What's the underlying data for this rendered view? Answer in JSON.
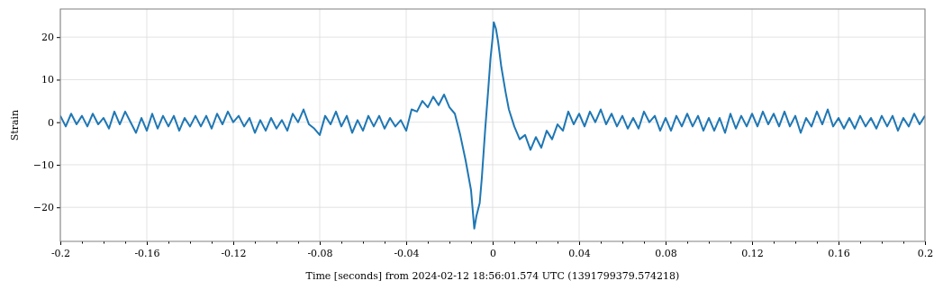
{
  "chart_data": {
    "type": "line",
    "xlabel": "Time [seconds] from 2024-02-12 18:56:01.574 UTC (1391799379.574218)",
    "ylabel": "Strain",
    "xlim": [
      -0.2,
      0.2
    ],
    "ylim": [
      -28,
      26.6
    ],
    "xticks": [
      -0.2,
      {
        "value": -0.19,
        "label": null
      },
      {
        "value": -0.18,
        "label": null
      },
      {
        "value": -0.17,
        "label": null
      },
      -0.16,
      {
        "value": -0.15,
        "label": null
      },
      {
        "value": -0.14,
        "label": null
      },
      {
        "value": -0.13,
        "label": null
      },
      -0.12,
      {
        "value": -0.11,
        "label": null
      },
      {
        "value": -0.1,
        "label": null
      },
      {
        "value": -0.09,
        "label": null
      },
      -0.08,
      {
        "value": -0.07,
        "label": null
      },
      {
        "value": -0.06,
        "label": null
      },
      {
        "value": -0.05,
        "label": null
      },
      -0.04,
      {
        "value": -0.03,
        "label": null
      },
      {
        "value": -0.02,
        "label": null
      },
      {
        "value": -0.01,
        "label": null
      },
      0,
      {
        "value": 0.01,
        "label": null
      },
      {
        "value": 0.02,
        "label": null
      },
      {
        "value": 0.03,
        "label": null
      },
      0.04,
      {
        "value": 0.05,
        "label": null
      },
      {
        "value": 0.06,
        "label": null
      },
      {
        "value": 0.07,
        "label": null
      },
      0.08,
      {
        "value": 0.09,
        "label": null
      },
      {
        "value": 0.1,
        "label": null
      },
      {
        "value": 0.11,
        "label": null
      },
      0.12,
      {
        "value": 0.13,
        "label": null
      },
      {
        "value": 0.14,
        "label": null
      },
      {
        "value": 0.15,
        "label": null
      },
      0.16,
      {
        "value": 0.17,
        "label": null
      },
      {
        "value": 0.18,
        "label": null
      },
      {
        "value": 0.19,
        "label": null
      },
      0.2
    ],
    "yticks": [
      {
        "value": -20,
        "label": "−20"
      },
      {
        "value": -10,
        "label": "−10"
      },
      0,
      10,
      20
    ],
    "grid": true,
    "line_style": "solid",
    "series": [
      {
        "color": "#1f77b4",
        "x": [
          -0.2,
          -0.1975,
          -0.195,
          -0.1925,
          -0.19,
          -0.1875,
          -0.185,
          -0.1825,
          -0.18,
          -0.1775,
          -0.175,
          -0.1725,
          -0.17,
          -0.1675,
          -0.165,
          -0.1625,
          -0.16,
          -0.1575,
          -0.155,
          -0.1525,
          -0.15,
          -0.1475,
          -0.145,
          -0.1425,
          -0.14,
          -0.1375,
          -0.135,
          -0.1325,
          -0.13,
          -0.1275,
          -0.125,
          -0.1225,
          -0.12,
          -0.1175,
          -0.115,
          -0.1125,
          -0.11,
          -0.1075,
          -0.105,
          -0.1025,
          -0.1,
          -0.0975,
          -0.095,
          -0.0925,
          -0.09,
          -0.0875,
          -0.085,
          -0.0825,
          -0.08,
          -0.0775,
          -0.075,
          -0.0725,
          -0.07,
          -0.0675,
          -0.065,
          -0.0625,
          -0.06,
          -0.0575,
          -0.055,
          -0.0525,
          -0.05,
          -0.0475,
          -0.045,
          -0.0425,
          -0.04,
          -0.0375,
          -0.035,
          -0.0325,
          -0.03,
          -0.0275,
          -0.025,
          -0.0225,
          -0.02,
          -0.0175,
          -0.015,
          -0.0125,
          -0.01,
          -0.0085,
          -0.0075,
          -0.006,
          -0.005,
          -0.0035,
          -0.002,
          -0.001,
          0,
          0.0005,
          0.0015,
          0.0025,
          0.004,
          0.006,
          0.0075,
          0.01,
          0.0125,
          0.015,
          0.0175,
          0.02,
          0.0225,
          0.025,
          0.0275,
          0.03,
          0.0325,
          0.035,
          0.0375,
          0.04,
          0.0425,
          0.045,
          0.0475,
          0.05,
          0.0525,
          0.055,
          0.0575,
          0.06,
          0.0625,
          0.065,
          0.0675,
          0.07,
          0.0725,
          0.075,
          0.0775,
          0.08,
          0.0825,
          0.085,
          0.0875,
          0.09,
          0.0925,
          0.095,
          0.0975,
          0.1,
          0.1025,
          0.105,
          0.1075,
          0.11,
          0.1125,
          0.115,
          0.1175,
          0.12,
          0.1225,
          0.125,
          0.1275,
          0.13,
          0.1325,
          0.135,
          0.1375,
          0.14,
          0.1425,
          0.145,
          0.1475,
          0.15,
          0.1525,
          0.155,
          0.1575,
          0.16,
          0.1625,
          0.165,
          0.1675,
          0.17,
          0.1725,
          0.175,
          0.1775,
          0.18,
          0.1825,
          0.185,
          0.1875,
          0.19,
          0.1925,
          0.195,
          0.1975,
          0.2
        ],
        "values": [
          1.5,
          -1,
          2,
          -0.5,
          1.5,
          -1,
          2,
          -0.5,
          1,
          -1.5,
          2.5,
          -0.5,
          2.5,
          0,
          -2.5,
          1,
          -2,
          2,
          -1.5,
          1.5,
          -1,
          1.5,
          -2,
          1,
          -1,
          1.5,
          -1,
          1.5,
          -1.5,
          2,
          -0.5,
          2.5,
          0,
          1.5,
          -1,
          1,
          -2.5,
          0.5,
          -2,
          1,
          -1.5,
          0.5,
          -2,
          2,
          0,
          3,
          -0.5,
          -1.5,
          -3,
          1.5,
          -0.5,
          2.5,
          -1,
          1.5,
          -2.5,
          0.5,
          -2,
          1.5,
          -1,
          1.5,
          -1.5,
          1,
          -1,
          0.5,
          -2,
          3,
          2.5,
          5,
          3.5,
          6,
          4,
          6.5,
          3.5,
          2,
          -3,
          -9,
          -16,
          -25,
          -22,
          -19,
          -13,
          -2,
          8,
          15,
          20,
          23.5,
          22,
          19,
          13,
          7,
          3,
          -1,
          -4,
          -3,
          -6.5,
          -3.5,
          -6,
          -2,
          -4,
          -0.5,
          -2,
          2.5,
          -0.5,
          2,
          -1,
          2.5,
          0,
          3,
          -0.5,
          2,
          -1,
          1.5,
          -1.5,
          1,
          -1.5,
          2.5,
          0,
          1.5,
          -2,
          1,
          -2,
          1.5,
          -1,
          2,
          -1,
          1.5,
          -2,
          1,
          -2,
          1,
          -2.5,
          2,
          -1.5,
          1.5,
          -1,
          2,
          -1,
          2.5,
          -0.5,
          2,
          -1,
          2.5,
          -1,
          1.5,
          -2.5,
          1,
          -1,
          2.5,
          -0.5,
          3,
          -1,
          1,
          -1.5,
          1,
          -1.5,
          1.5,
          -1,
          1,
          -1.5,
          1.5,
          -1,
          1.5,
          -2,
          1,
          -1,
          2,
          -0.5,
          1.5
        ]
      }
    ]
  }
}
